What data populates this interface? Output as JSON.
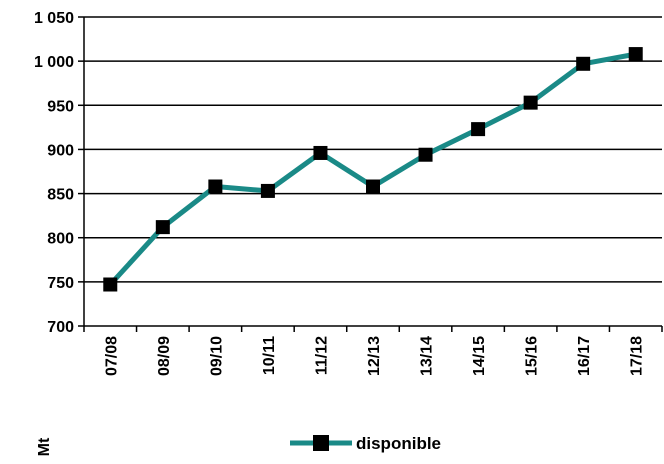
{
  "chart_data": {
    "type": "line",
    "categories": [
      "07/08",
      "08/09",
      "09/10",
      "10/11",
      "11/12",
      "12/13",
      "13/14",
      "14/15",
      "15/16",
      "16/17",
      "17/18"
    ],
    "series": [
      {
        "name": "disponible",
        "values": [
          747,
          812,
          858,
          853,
          896,
          858,
          894,
          923,
          953,
          997,
          1008
        ],
        "color": "#1a8a87",
        "marker": "square",
        "marker_color": "#000000"
      }
    ],
    "y_ticks": [
      700,
      750,
      800,
      850,
      900,
      950,
      1000,
      1050
    ],
    "y_tick_labels": [
      "700",
      "750",
      "800",
      "850",
      "900",
      "950",
      "1 000",
      "1 050"
    ],
    "ylim": [
      700,
      1050
    ],
    "ylabel": "Mt",
    "xlabel": "",
    "title": "",
    "grid": "horizontal",
    "legend_position": "bottom"
  }
}
